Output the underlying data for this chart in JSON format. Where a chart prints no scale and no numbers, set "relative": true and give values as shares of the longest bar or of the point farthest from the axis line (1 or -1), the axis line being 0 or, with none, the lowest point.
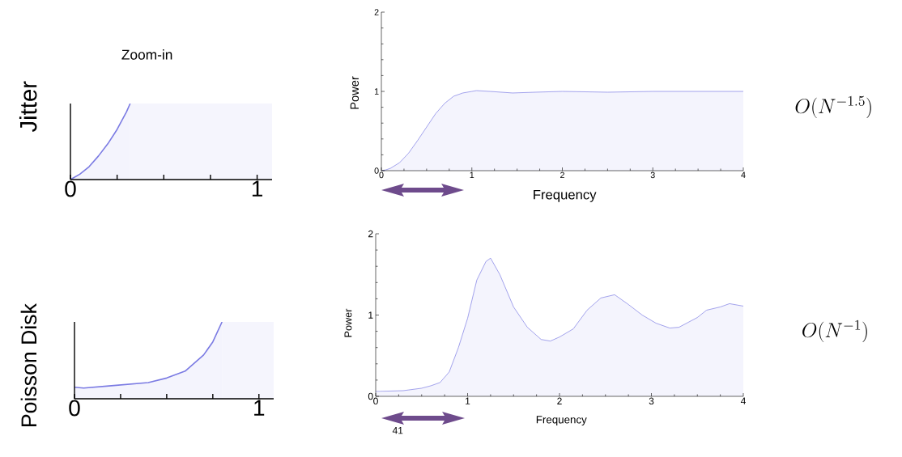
{
  "chart_data": [
    {
      "type": "area",
      "title": "Zoom-in",
      "ylabel": "Jitter",
      "relative": true,
      "bands": [
        {
          "axis": "x",
          "from": 0.32,
          "to": 1.08,
          "color": "#f5f5fd"
        }
      ],
      "xlim": [
        0,
        1.08
      ],
      "xticks": [
        {
          "value": 0,
          "label": "0"
        },
        {
          "value": 0.25,
          "label": null
        },
        {
          "value": 0.5,
          "label": null
        },
        {
          "value": 0.75,
          "label": null
        },
        1
      ],
      "x": [
        0,
        0.05,
        0.1,
        0.15,
        0.2,
        0.25,
        0.3,
        0.32
      ],
      "series": [
        {
          "color": "#7b7be3",
          "values": [
            0,
            0.07,
            0.17,
            0.31,
            0.47,
            0.66,
            0.89,
            1
          ]
        }
      ]
    },
    {
      "type": "area",
      "xlabel": "Frequency",
      "ylabel": "Power",
      "xlim": [
        0,
        4
      ],
      "ylim": [
        0,
        2
      ],
      "xticks": [
        0,
        1,
        2,
        3,
        4
      ],
      "yticks": [
        0,
        1,
        2
      ],
      "annotations": [
        "O(N^{-1.5})"
      ],
      "x": [
        0,
        0.05,
        0.1,
        0.2,
        0.3,
        0.4,
        0.5,
        0.6,
        0.7,
        0.8,
        0.9,
        1.0,
        1.05,
        1.2,
        1.45,
        1.7,
        2.0,
        2.5,
        3.0,
        3.5,
        4.0
      ],
      "series": [
        {
          "color": "#7b7be3",
          "values": [
            0,
            0.01,
            0.03,
            0.1,
            0.22,
            0.38,
            0.55,
            0.72,
            0.85,
            0.94,
            0.98,
            1.0,
            1.01,
            1.0,
            0.98,
            0.99,
            1.0,
            0.99,
            1.0,
            1.0,
            1.0
          ]
        }
      ]
    },
    {
      "type": "area",
      "ylabel": "Poisson Disk",
      "relative": true,
      "bands": [
        {
          "axis": "x",
          "from": 0.8,
          "to": 1.08,
          "color": "#f5f5fd"
        }
      ],
      "xlim": [
        0,
        1.08
      ],
      "xticks": [
        {
          "value": 0,
          "label": "0"
        },
        {
          "value": 0.25,
          "label": null
        },
        {
          "value": 0.5,
          "label": null
        },
        {
          "value": 0.75,
          "label": null
        },
        1
      ],
      "x": [
        0,
        0.05,
        0.2,
        0.4,
        0.5,
        0.6,
        0.7,
        0.75,
        0.8
      ],
      "series": [
        {
          "color": "#7b7be3",
          "values": [
            0.15,
            0.14,
            0.17,
            0.21,
            0.27,
            0.36,
            0.57,
            0.74,
            1
          ]
        }
      ]
    },
    {
      "type": "area",
      "xlabel": "Frequency",
      "ylabel": "Power",
      "xlim": [
        0,
        4
      ],
      "ylim": [
        0,
        2
      ],
      "xticks": [
        0,
        1,
        2,
        3,
        4
      ],
      "yticks": [
        0,
        1,
        2
      ],
      "annotations": [
        "O(N^{-1})",
        "41"
      ],
      "x": [
        0,
        0.3,
        0.5,
        0.6,
        0.7,
        0.8,
        0.9,
        1.0,
        1.1,
        1.2,
        1.25,
        1.35,
        1.5,
        1.65,
        1.8,
        1.9,
        2.0,
        2.15,
        2.3,
        2.45,
        2.6,
        2.75,
        2.9,
        3.05,
        3.2,
        3.3,
        3.5,
        3.6,
        3.75,
        3.85,
        4.0
      ],
      "series": [
        {
          "color": "#7b7be3",
          "values": [
            0.06,
            0.07,
            0.1,
            0.13,
            0.17,
            0.3,
            0.6,
            0.96,
            1.43,
            1.66,
            1.7,
            1.5,
            1.1,
            0.85,
            0.7,
            0.68,
            0.73,
            0.83,
            1.06,
            1.21,
            1.25,
            1.13,
            1.0,
            0.9,
            0.84,
            0.85,
            0.97,
            1.06,
            1.1,
            1.14,
            1.11
          ]
        }
      ]
    }
  ]
}
